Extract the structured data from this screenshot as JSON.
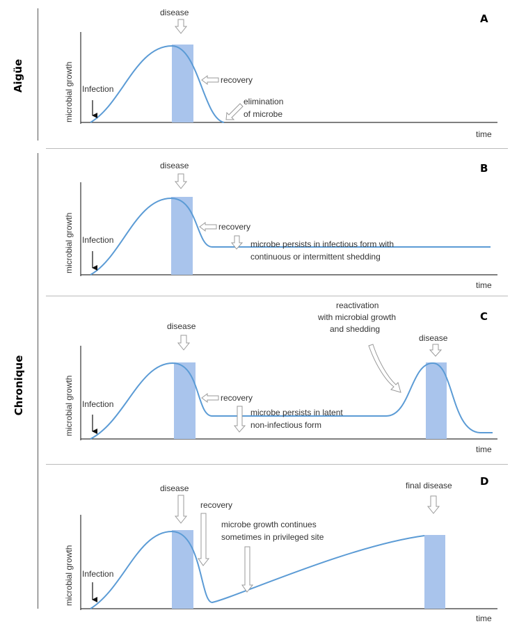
{
  "side_labels": {
    "acute": "Aigüe",
    "chronic": "Chronique"
  },
  "panels": [
    {
      "letter": "A",
      "ylabel": "microbial growth",
      "xlabel": "time",
      "infection": "Infection",
      "disease": "disease",
      "recovery": "recovery",
      "elimination_1": "elimination",
      "elimination_2": "of microbe"
    },
    {
      "letter": "B",
      "ylabel": "microbial growth",
      "xlabel": "time",
      "infection": "Infection",
      "disease": "disease",
      "recovery": "recovery",
      "persist_1": "microbe persists in infectious form with",
      "persist_2": "continuous or intermittent shedding"
    },
    {
      "letter": "C",
      "ylabel": "microbial growth",
      "xlabel": "time",
      "infection": "Infection",
      "disease": "disease",
      "recovery": "recovery",
      "persist_1": "microbe persists in latent",
      "persist_2": "non-infectious form",
      "react_1": "reactivation",
      "react_2": "with microbial growth",
      "react_3": "and shedding",
      "disease2": "disease"
    },
    {
      "letter": "D",
      "ylabel": "microbial growth",
      "xlabel": "time",
      "infection": "Infection",
      "disease": "disease",
      "recovery": "recovery",
      "cont_1": "microbe growth continues",
      "cont_2": "sometimes in privileged site",
      "final": "final disease"
    }
  ],
  "colors": {
    "curve": "#5b9bd5",
    "disease_bar": "#a9c4ec",
    "axis": "#333333",
    "arrow_outline": "#999999"
  }
}
